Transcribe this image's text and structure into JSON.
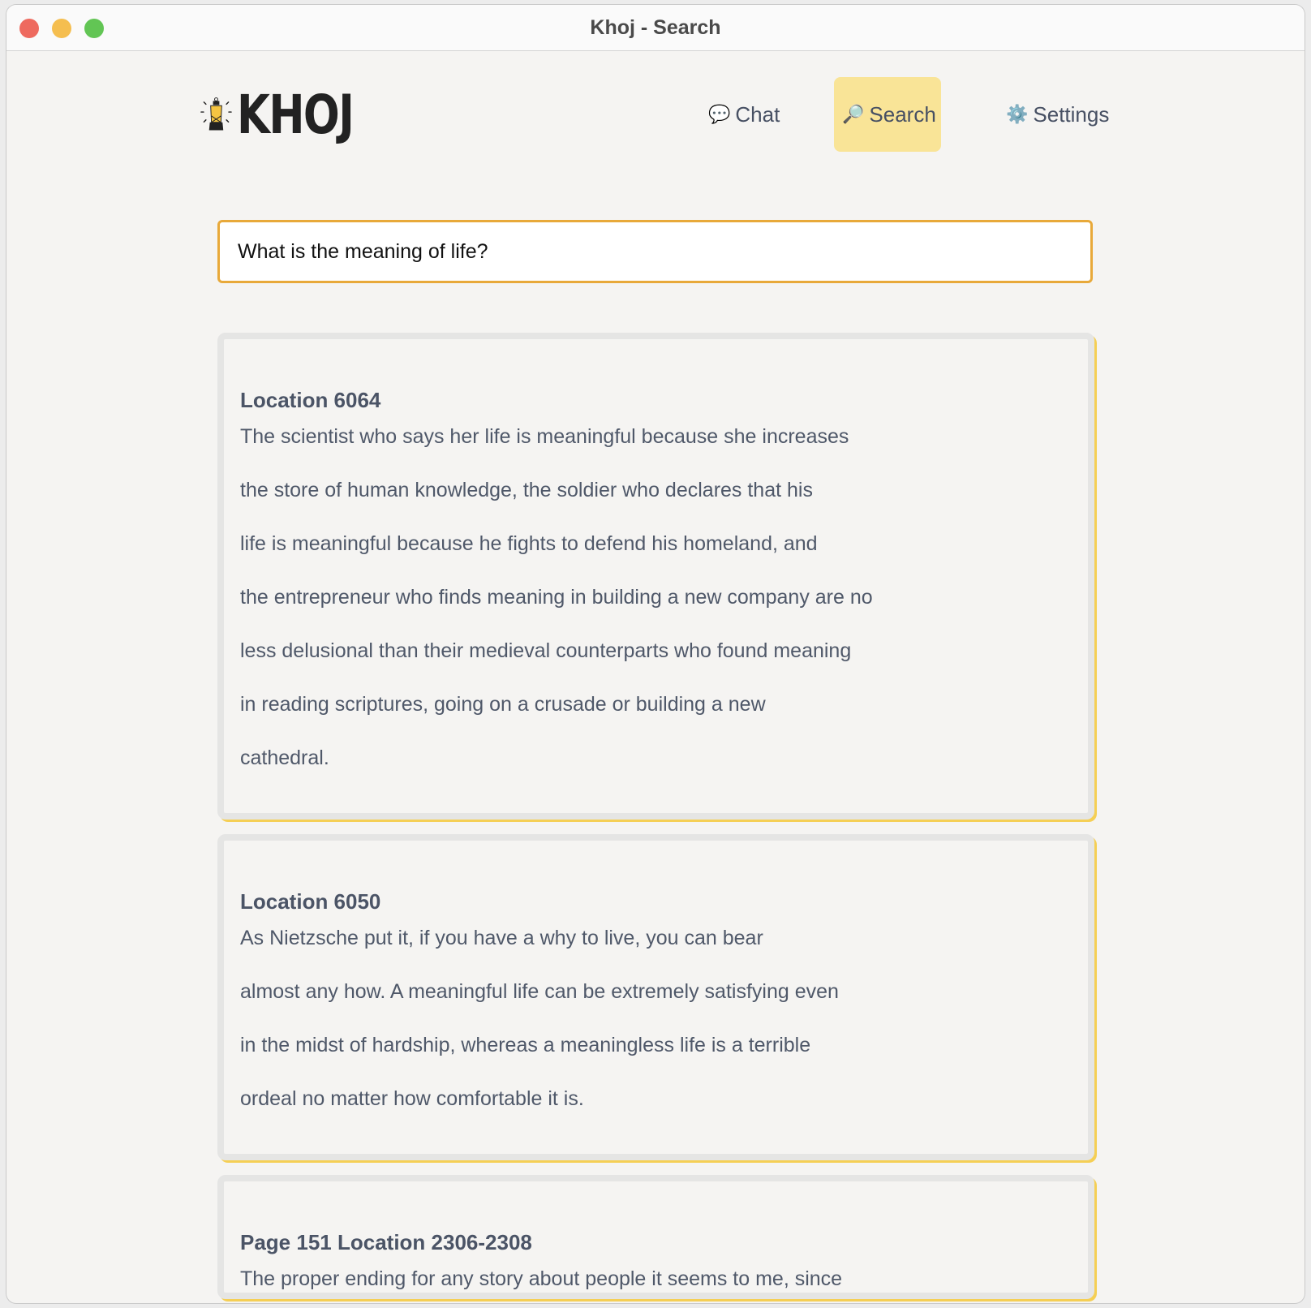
{
  "window": {
    "title": "Khoj - Search",
    "traffic_lights": {
      "close": "#ee6a5f",
      "minimize": "#f5be4f",
      "zoom": "#62c554"
    }
  },
  "header": {
    "logo_text": "KHOJ",
    "nav": [
      {
        "label": "Chat",
        "icon": "speech-bubble-icon",
        "active": false
      },
      {
        "label": "Search",
        "icon": "magnifier-icon",
        "active": true
      },
      {
        "label": "Settings",
        "icon": "gear-icon",
        "active": false
      }
    ],
    "accent": "#f9e497"
  },
  "search": {
    "value": "What is the meaning of life?",
    "border_color": "#e8a93a"
  },
  "results": [
    {
      "title": "Location 6064",
      "lines": [
        "The scientist who says her life is meaningful because she increases",
        "the store of human knowledge, the soldier who declares that his",
        "life is meaningful because he fights to defend his homeland, and",
        "the entrepreneur who finds meaning in building a new company are no",
        "less delusional than their medieval counterparts who found meaning",
        "in reading scriptures, going on a crusade or building a new",
        "cathedral."
      ]
    },
    {
      "title": "Location 6050",
      "lines": [
        "As Nietzsche put it, if you have a why to live, you can bear",
        "almost any how. A meaningful life can be extremely satisfying even",
        "in the midst of hardship, whereas a meaningless life is a terrible",
        "ordeal no matter how comfortable it is."
      ]
    },
    {
      "title": "Page 151 Location 2306-2308",
      "lines": [
        "The proper ending for any story about people it seems to me, since"
      ]
    }
  ]
}
